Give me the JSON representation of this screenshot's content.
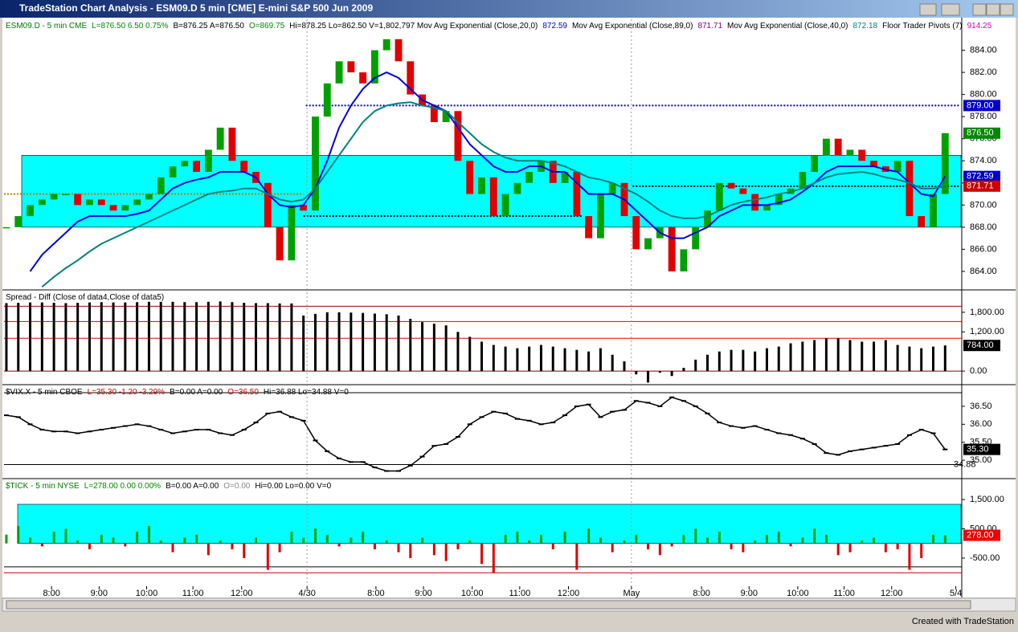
{
  "window": {
    "title": "TradeStation Chart Analysis - ESM09.D  5 min  [CME] E-mini S&P 500 Jun 2009",
    "footer": "Created with TradeStation"
  },
  "chart_data": [
    {
      "type": "price",
      "header": [
        {
          "text": "ESM09.D - 5 min  CME",
          "color": "#007700"
        },
        {
          "text": "L=876.50  6.50  0.75%",
          "color": "#008800"
        },
        {
          "text": "B=876.25  A=876.50",
          "color": "#000000"
        },
        {
          "text": "O=869.75",
          "color": "#008800"
        },
        {
          "text": "Hi=878.25  Lo=862.50  V=1,802,797  Mov Avg Exponential (Close,20,0)",
          "color": "#000000"
        },
        {
          "text": "872.59",
          "color": "#0000cc"
        },
        {
          "text": "Mov Avg Exponential (Close,89,0)",
          "color": "#000000"
        },
        {
          "text": "871.71",
          "color": "#800080"
        },
        {
          "text": "Mov Avg Exponential (Close,40,0)",
          "color": "#000000"
        },
        {
          "text": "872.18",
          "color": "#008080"
        },
        {
          "text": "Floor Trader Pivots (7)",
          "color": "#000000"
        },
        {
          "text": "914.25",
          "color": "#cc00cc"
        }
      ],
      "ylim": [
        862.4,
        886.8
      ],
      "yticks": [
        {
          "value": 864,
          "label": "864.00"
        },
        {
          "value": 866,
          "label": "866.00"
        },
        {
          "value": 868,
          "label": "868.00"
        },
        {
          "value": 870,
          "label": "870.00"
        },
        {
          "value": 872,
          "label": "872.00"
        },
        {
          "value": 874,
          "label": "874.00"
        },
        {
          "value": 876,
          "label": "876.00"
        },
        {
          "value": 878,
          "label": "878.00"
        },
        {
          "value": 880,
          "label": "880.00"
        },
        {
          "value": 882,
          "label": "882.00"
        },
        {
          "value": 884,
          "label": "884.00"
        }
      ],
      "band": [
        868,
        874.5
      ],
      "band_color": "#00ffff",
      "up_color": "#00a000",
      "down_color": "#e00000",
      "values": [
        868,
        869,
        870,
        870.5,
        871,
        871,
        870,
        870.5,
        870,
        869.5,
        870,
        870.5,
        871,
        872.5,
        873.5,
        874,
        873,
        875,
        877,
        874,
        873,
        872,
        868,
        865,
        870,
        869.5,
        878,
        881,
        883,
        882,
        881,
        884,
        885,
        883,
        880,
        879,
        877.5,
        878.5,
        874,
        871,
        872.5,
        869,
        871,
        872,
        873,
        874,
        872,
        873,
        869,
        867,
        871,
        872,
        869,
        866,
        867,
        868,
        864,
        866,
        868,
        869.5,
        872,
        871.5,
        871,
        869.5,
        870,
        871,
        871.5,
        873,
        874.5,
        876,
        874.5,
        875,
        874,
        873.5,
        873,
        874,
        869,
        868,
        871,
        876.5
      ],
      "overlays": [
        {
          "color": "#0000dd",
          "values": [
            null,
            null,
            864,
            865.5,
            866.5,
            867.5,
            868.5,
            869,
            869,
            869,
            869,
            869.2,
            869.5,
            870.5,
            871.5,
            872,
            872.3,
            872.5,
            873,
            873,
            873,
            872.5,
            871,
            870,
            869.8,
            870,
            871.5,
            874,
            877,
            879,
            880.5,
            881.5,
            882,
            881.5,
            880.5,
            879.5,
            879,
            878.5,
            877,
            875.5,
            874.5,
            873.5,
            873,
            873,
            873.5,
            873.5,
            873,
            873,
            872,
            871,
            871,
            871,
            870.5,
            869.5,
            868.5,
            867.5,
            867,
            867,
            867.5,
            868,
            869,
            869.5,
            870,
            870,
            870,
            870.2,
            870.5,
            871.2,
            872,
            873,
            873.5,
            873.5,
            873.5,
            873.5,
            873.2,
            873,
            872,
            871,
            870.8,
            872.6
          ]
        },
        {
          "color": "#008080",
          "values": [
            null,
            null,
            null,
            862.6,
            863.5,
            864.3,
            865,
            865.8,
            866.5,
            867,
            867.5,
            868,
            868.5,
            869,
            869.5,
            870,
            870.5,
            871,
            871.2,
            871.3,
            871.5,
            871.5,
            871,
            870.5,
            870.3,
            870.5,
            871.5,
            873,
            874.5,
            876,
            877.5,
            878.5,
            879,
            879.2,
            879.3,
            879,
            878.8,
            878.5,
            877.5,
            876.5,
            875.5,
            874.8,
            874.3,
            874,
            874,
            874,
            873.8,
            873.5,
            873,
            872.5,
            872.3,
            872,
            871.5,
            871,
            870.3,
            869.5,
            869,
            868.8,
            868.8,
            869,
            869.5,
            870,
            870.3,
            870.5,
            870.7,
            871,
            871.2,
            871.5,
            872,
            872.5,
            872.8,
            872.9,
            873,
            872.8,
            872.5,
            872.3,
            872,
            871.5,
            871.5,
            871.7
          ]
        }
      ],
      "levels": [
        {
          "value": 871,
          "color": "#c08000",
          "from": -0.2,
          "to": 25
        },
        {
          "value": 879,
          "color": "#0000cc",
          "from": 25.2,
          "to": 52.5
        },
        {
          "value": 879,
          "color": "#0000cc",
          "from": 52.7,
          "to": 80.2
        },
        {
          "value": 869,
          "color": "#000000",
          "from": 25,
          "to": 48.5
        },
        {
          "value": 871.7,
          "color": "#000000",
          "from": 52.7,
          "to": 80.2
        }
      ],
      "right_labels": [
        {
          "value": 879,
          "label": "879.00",
          "color": "#0000cc"
        },
        {
          "value": 876.5,
          "label": "876.50",
          "color": "#008800"
        },
        {
          "value": 872.59,
          "label": "872.59",
          "color": "#0000cc"
        },
        {
          "value": 871.71,
          "label": "871.71",
          "color": "#cc0000"
        }
      ]
    },
    {
      "type": "bar",
      "header": [
        {
          "text": "Spread - Diff (Close of data4,Close of data5)",
          "color": "#000000"
        }
      ],
      "ylim": [
        -390,
        2460
      ],
      "yticks": [
        {
          "value": 0,
          "label": "0.00"
        },
        {
          "value": 1200,
          "label": "1,200.00"
        },
        {
          "value": 1800,
          "label": "1,800.00"
        }
      ],
      "color": "#000000",
      "values": [
        2080,
        2090,
        2100,
        2100,
        2090,
        2080,
        2090,
        2100,
        2110,
        2100,
        2100,
        2110,
        2120,
        2120,
        2120,
        2110,
        2110,
        2120,
        2130,
        2110,
        2090,
        2080,
        2080,
        2070,
        2070,
        1700,
        1750,
        1800,
        1800,
        1790,
        1780,
        1760,
        1740,
        1700,
        1600,
        1500,
        1450,
        1400,
        1200,
        1050,
        900,
        800,
        750,
        700,
        750,
        800,
        750,
        700,
        650,
        600,
        700,
        500,
        300,
        -100,
        -350,
        -50,
        -150,
        100,
        350,
        500,
        600,
        650,
        650,
        600,
        700,
        750,
        850,
        900,
        950,
        1000,
        1000,
        950,
        900,
        900,
        950,
        800,
        750,
        700,
        750,
        784
      ],
      "levels": [
        {
          "value": 1985,
          "color": "#aa0000",
          "from": -0.2,
          "to": 80.4
        },
        {
          "value": 1518,
          "color": "#ee0000",
          "from": -0.2,
          "to": 80.4
        },
        {
          "value": 1004,
          "color": "#ee0000",
          "from": -0.2,
          "to": 80.4
        },
        {
          "value": 0,
          "color": "#880000",
          "from": -0.2,
          "to": 80.4
        }
      ],
      "right_labels": [
        {
          "value": 784,
          "label": "784.00",
          "color": "#000000"
        }
      ]
    },
    {
      "type": "line",
      "header": [
        {
          "text": "$VIX.X - 5 min  CBOE",
          "color": "#000000"
        },
        {
          "text": "L=35.30  -1.20  -3.29%",
          "color": "#cc0000"
        },
        {
          "text": "B=0.00  A=0.00",
          "color": "#000000"
        },
        {
          "text": "O=36.50",
          "color": "#cc0000"
        },
        {
          "text": "Hi=36.88  Lo=34.88  V=0",
          "color": "#000000"
        }
      ],
      "ylim": [
        34.51,
        37.08
      ],
      "yticks": [
        {
          "value": 35,
          "label": "35.00"
        },
        {
          "value": 35.5,
          "label": "35.50"
        },
        {
          "value": 36,
          "label": "36.00"
        },
        {
          "value": 36.5,
          "label": "36.50"
        }
      ],
      "color": "#000000",
      "values": [
        36.25,
        36.2,
        36.0,
        35.85,
        35.8,
        35.8,
        35.75,
        35.8,
        35.85,
        35.9,
        35.95,
        36.0,
        35.95,
        35.85,
        35.75,
        35.8,
        35.85,
        35.85,
        35.75,
        35.7,
        35.85,
        36.05,
        36.3,
        36.35,
        36.2,
        36.1,
        35.55,
        35.25,
        35.05,
        34.95,
        34.95,
        34.8,
        34.7,
        34.7,
        34.85,
        35.1,
        35.4,
        35.45,
        35.65,
        36.0,
        36.2,
        36.35,
        36.3,
        36.15,
        36.1,
        36.0,
        36.05,
        36.25,
        36.5,
        36.55,
        36.2,
        36.35,
        36.4,
        36.65,
        36.6,
        36.5,
        36.75,
        36.65,
        36.5,
        36.3,
        36.05,
        35.95,
        35.9,
        35.95,
        35.85,
        35.75,
        35.7,
        35.6,
        35.45,
        35.2,
        35.15,
        35.25,
        35.3,
        35.35,
        35.4,
        35.45,
        35.7,
        35.85,
        35.75,
        35.3
      ],
      "levels": [
        {
          "value": 36.88,
          "color": "#000000",
          "from": -0.2,
          "to": 80.4
        },
        {
          "value": 34.88,
          "color": "#000000",
          "from": -0.2,
          "to": 80.4
        }
      ],
      "right_labels": [
        {
          "value": 35.3,
          "label": "35.30",
          "color": "#000000"
        },
        {
          "value": 34.88,
          "label": "34.88",
          "color": null
        }
      ]
    },
    {
      "type": "bar",
      "header": [
        {
          "text": "$TICK - 5 min  NYSE",
          "color": "#007700"
        },
        {
          "text": "L=278.00  0.00  0.00%",
          "color": "#008800"
        },
        {
          "text": "B=0.00  A=0.00",
          "color": "#000000"
        },
        {
          "text": "O=0.00",
          "color": "#888888"
        },
        {
          "text": "Hi=0.00  Lo=0.00  V=0",
          "color": "#000000"
        }
      ],
      "ylim": [
        -1460,
        2185
      ],
      "yticks": [
        {
          "value": -500,
          "label": "-500.00"
        },
        {
          "value": 500,
          "label": "500.00"
        },
        {
          "value": 1500,
          "label": "1,500.00"
        }
      ],
      "band": [
        0,
        1336
      ],
      "band_color": "#00ffff",
      "up_color": "#00a000",
      "down_color": "#e00000",
      "values": [
        300,
        600,
        200,
        -100,
        400,
        500,
        100,
        -200,
        300,
        200,
        -100,
        400,
        600,
        100,
        -300,
        200,
        300,
        -400,
        100,
        -200,
        -500,
        200,
        -900,
        -300,
        400,
        200,
        500,
        300,
        -100,
        200,
        400,
        -200,
        100,
        -300,
        -500,
        200,
        -400,
        -600,
        -200,
        100,
        -700,
        -1000,
        300,
        400,
        100,
        300,
        -200,
        400,
        -900,
        500,
        200,
        -300,
        100,
        300,
        -200,
        -400,
        -100,
        300,
        500,
        200,
        400,
        -200,
        -300,
        100,
        300,
        400,
        -100,
        200,
        500,
        300,
        -400,
        -300,
        100,
        200,
        -300,
        -200,
        -900,
        -500,
        300,
        278
      ],
      "levels": [
        {
          "value": -800,
          "color": "#000000",
          "from": -0.2,
          "to": 80.4
        },
        {
          "value": -1000,
          "color": "#cc0000",
          "from": -0.2,
          "to": 80.4
        }
      ],
      "right_labels": [
        {
          "value": 278,
          "label": "278.00",
          "color": "#ee0000"
        }
      ],
      "xlim": [
        -0.2,
        80.4
      ],
      "xticks": [
        {
          "value": 3.8,
          "label": "8:00"
        },
        {
          "value": 7.8,
          "label": "9:00"
        },
        {
          "value": 11.8,
          "label": "10:00"
        },
        {
          "value": 15.7,
          "label": "11:00"
        },
        {
          "value": 19.8,
          "label": "12:00"
        },
        {
          "value": 25.3,
          "label": "4/30"
        },
        {
          "value": 31.1,
          "label": "8:00"
        },
        {
          "value": 35.1,
          "label": "9:00"
        },
        {
          "value": 39.2,
          "label": "10:00"
        },
        {
          "value": 43.2,
          "label": "11:00"
        },
        {
          "value": 47.3,
          "label": "12:00"
        },
        {
          "value": 52.6,
          "label": "May"
        },
        {
          "value": 58.5,
          "label": "8:00"
        },
        {
          "value": 62.5,
          "label": "9:00"
        },
        {
          "value": 66.6,
          "label": "10:00"
        },
        {
          "value": 70.5,
          "label": "11:00"
        },
        {
          "value": 74.5,
          "label": "12:00"
        },
        {
          "value": 79.9,
          "label": "5/4"
        }
      ]
    }
  ]
}
